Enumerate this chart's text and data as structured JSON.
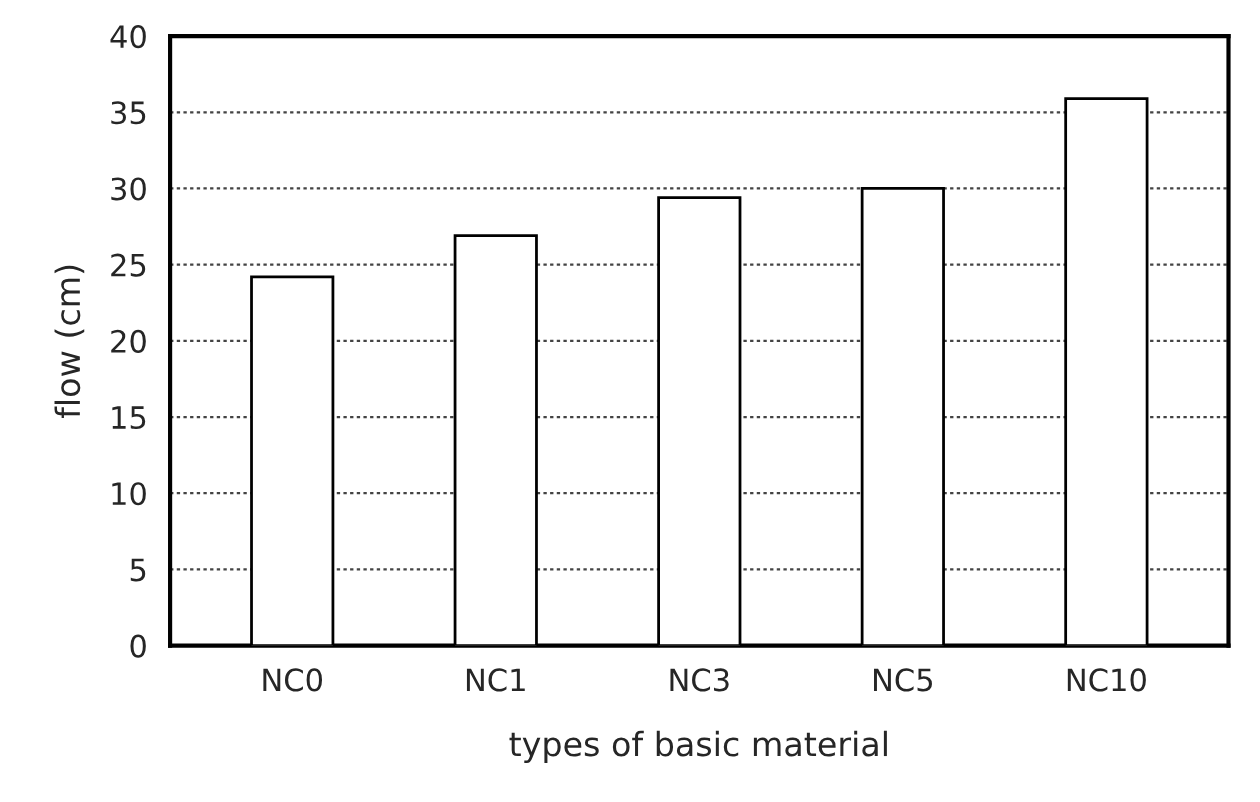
{
  "chart_data": {
    "type": "bar",
    "xlabel": "types of basic material",
    "ylabel": "flow (cm)",
    "categories": [
      "NC0",
      "NC1",
      "NC3",
      "NC5",
      "NC10"
    ],
    "values": [
      24.2,
      26.9,
      29.4,
      30.0,
      35.9
    ],
    "color": "#ffffff",
    "ylim": [
      0,
      40
    ],
    "yticks": [
      0,
      5,
      10,
      15,
      20,
      25,
      30,
      35,
      40
    ],
    "grid": "y"
  }
}
